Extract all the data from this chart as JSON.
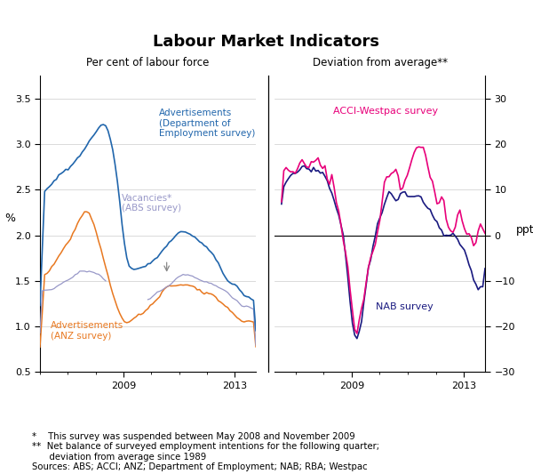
{
  "title": "Labour Market Indicators",
  "left_ylabel": "%",
  "right_ylabel": "ppt",
  "left_panel_title": "Per cent of labour force",
  "right_panel_title": "Deviation from average**",
  "left_ylim": [
    0.5,
    3.75
  ],
  "right_ylim": [
    -30,
    35
  ],
  "left_yticks": [
    0.5,
    1.0,
    1.5,
    2.0,
    2.5,
    3.0,
    3.5
  ],
  "right_yticks": [
    -30,
    -20,
    -10,
    0,
    10,
    20,
    30
  ],
  "left_xlim": [
    2006.0,
    2013.75
  ],
  "right_xlim": [
    2006.25,
    2013.75
  ],
  "colors": {
    "dept_employment": "#2166ac",
    "anz": "#e87820",
    "vacancies": "#9898c8",
    "acci": "#e8007a",
    "nab": "#1a1a80"
  },
  "label_dept": "Advertisements\n(Department of\nEmployment survey)",
  "label_vac": "Vacancies*\n(ABS survey)",
  "label_anz": "Advertisements\n(ANZ survey)",
  "label_acci": "ACCI-Westpac survey",
  "label_nab": "NAB survey",
  "footnote": "*    This survey was suspended between May 2008 and November 2009\n**  Net balance of surveyed employment intentions for the following quarter;\n      deviation from average since 1989\nSources: ABS; ACCI; ANZ; Department of Employment; NAB; RBA; Westpac"
}
